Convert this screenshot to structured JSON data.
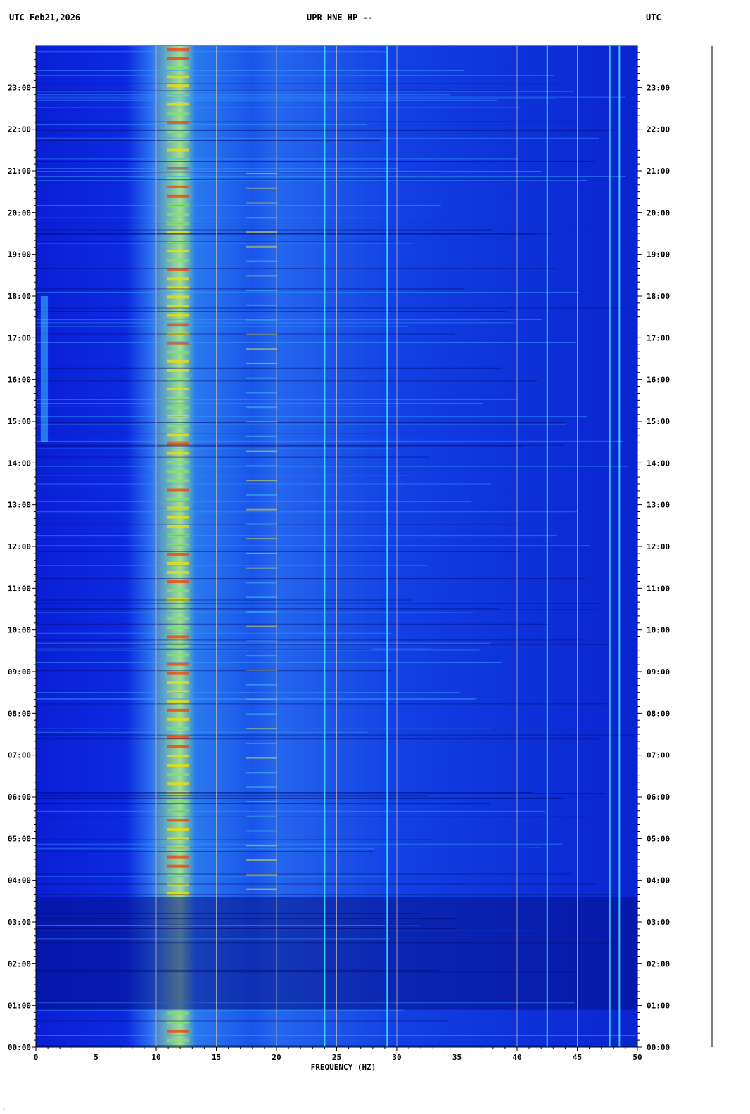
{
  "header": {
    "left": "UTC  Feb21,2026",
    "center": "UPR HNE HP --",
    "right": "UTC"
  },
  "chart_data": {
    "type": "heatmap",
    "title": "UPR HNE HP --",
    "date": "Feb21,2026",
    "xlabel": "FREQUENCY (HZ)",
    "xlim": [
      0,
      50
    ],
    "x_ticks": [
      0,
      5,
      10,
      15,
      20,
      25,
      30,
      35,
      40,
      45,
      50
    ],
    "y_axis_label_left": "UTC",
    "y_axis_label_right": "UTC",
    "y_ticks": [
      "00:00",
      "01:00",
      "02:00",
      "03:00",
      "04:00",
      "05:00",
      "06:00",
      "07:00",
      "08:00",
      "09:00",
      "10:00",
      "11:00",
      "12:00",
      "13:00",
      "14:00",
      "15:00",
      "16:00",
      "17:00",
      "18:00",
      "19:00",
      "20:00",
      "21:00",
      "22:00",
      "23:00"
    ],
    "y_range_hours": [
      0,
      24
    ],
    "grid": true,
    "colormap": [
      "#00008b",
      "#0000ff",
      "#0080ff",
      "#00ffff",
      "#ffff00",
      "#ff0000"
    ],
    "features": {
      "broadband_energy_hz": [
        10,
        13.5
      ],
      "secondary_band_hz": [
        17.5,
        20
      ],
      "persistent_lines_hz": [
        24,
        29.2,
        42.5,
        47.7,
        48.5
      ],
      "quiet_period_hours": [
        0.9,
        3.6
      ]
    }
  }
}
